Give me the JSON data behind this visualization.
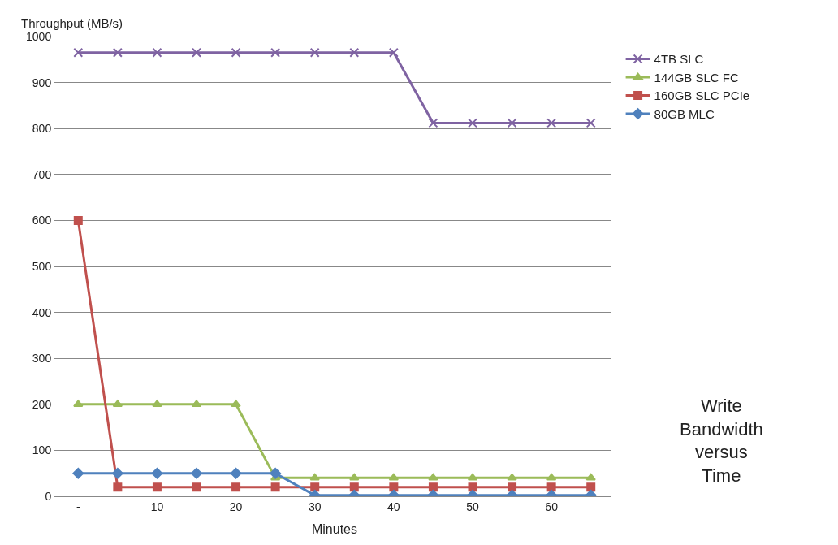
{
  "chart_data": {
    "type": "line",
    "ylabel": "Throughput (MB/s)",
    "xlabel": "Minutes",
    "x": [
      0,
      5,
      10,
      15,
      20,
      25,
      30,
      35,
      40,
      45,
      50,
      55,
      60,
      65
    ],
    "xlim": [
      -2.5,
      67.5
    ],
    "xticks": [
      {
        "value": 0,
        "label": "-"
      },
      10,
      20,
      30,
      40,
      50,
      60
    ],
    "ylim": [
      0,
      1000
    ],
    "yticks": [
      0,
      100,
      200,
      300,
      400,
      500,
      600,
      700,
      800,
      900,
      1000
    ],
    "grid": "y",
    "legend": "right",
    "line_style": "solid",
    "series": [
      {
        "name": "4TB SLC",
        "color": "#7f63a2",
        "marker": "cross",
        "values": [
          965,
          965,
          965,
          965,
          965,
          965,
          965,
          965,
          965,
          812,
          812,
          812,
          812,
          812
        ]
      },
      {
        "name": "144GB SLC FC",
        "color": "#9bbb59",
        "marker": "triangle",
        "values": [
          200,
          200,
          200,
          200,
          200,
          40,
          40,
          40,
          40,
          40,
          40,
          40,
          40,
          40
        ]
      },
      {
        "name": "160GB SLC PCIe",
        "color": "#c0504d",
        "marker": "square",
        "values": [
          600,
          20,
          20,
          20,
          20,
          20,
          20,
          20,
          20,
          20,
          20,
          20,
          20,
          20
        ]
      },
      {
        "name": "80GB MLC",
        "color": "#4f81bd",
        "marker": "diamond",
        "values": [
          50,
          50,
          50,
          50,
          50,
          50,
          2,
          2,
          2,
          2,
          2,
          2,
          2,
          2
        ]
      }
    ],
    "annotations": [
      "Write\nBandwidth\nversus\nTime"
    ]
  }
}
